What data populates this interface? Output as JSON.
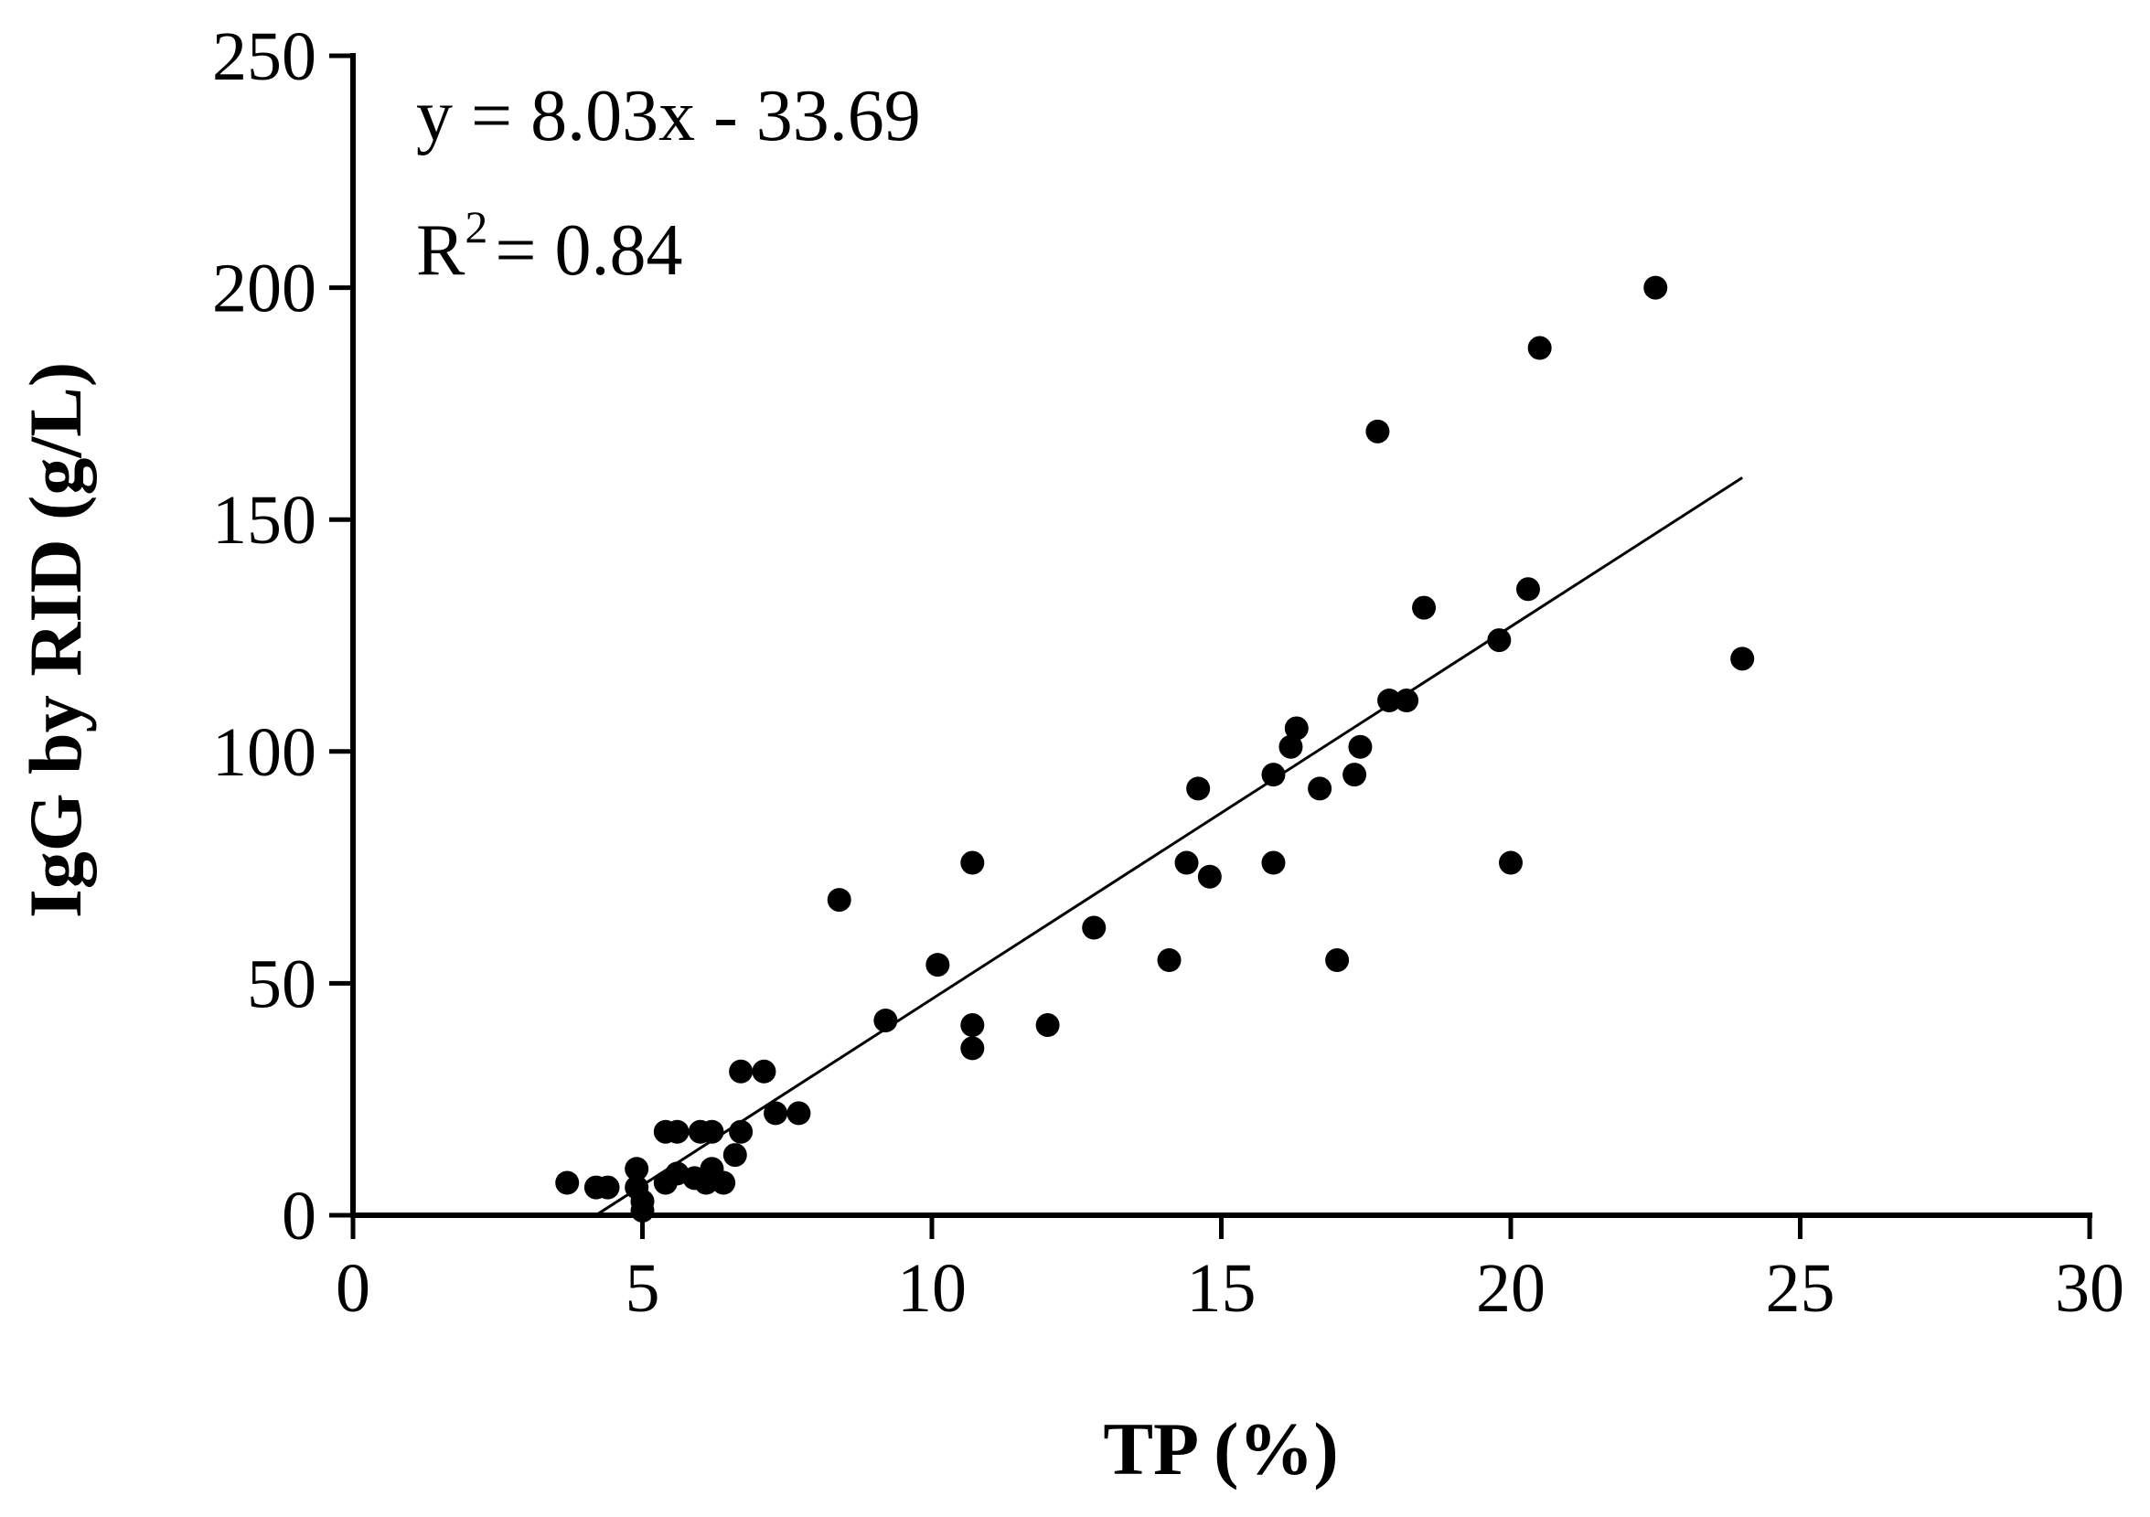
{
  "chart_data": {
    "type": "scatter",
    "title": "",
    "xlabel": "TP (%)",
    "ylabel": "IgG by RID (g/L)",
    "xlim": [
      0,
      30
    ],
    "ylim": [
      0,
      250
    ],
    "xticks": [
      0,
      5,
      10,
      15,
      20,
      25,
      30
    ],
    "yticks": [
      0,
      50,
      100,
      150,
      200,
      250
    ],
    "xtick_labels": [
      "0",
      "5",
      "10",
      "15",
      "20",
      "25",
      "30"
    ],
    "ytick_labels": [
      "0",
      "50",
      "100",
      "150",
      "200",
      "250"
    ],
    "grid": false,
    "legend": "none",
    "colors": {
      "points": "#000000",
      "line": "#000000",
      "axis": "#000000"
    },
    "annotations": {
      "equation": "y = 8.03x - 33.69",
      "r2_prefix": "R",
      "r2_sup": "2",
      "r2_value": "= 0.84"
    },
    "fit_line": {
      "slope": 8.03,
      "intercept": -33.69,
      "x_range": [
        4.2,
        24.0
      ]
    },
    "series": [
      {
        "points": [
          {
            "x": 3.7,
            "y": 7
          },
          {
            "x": 4.2,
            "y": 6
          },
          {
            "x": 4.4,
            "y": 6
          },
          {
            "x": 4.9,
            "y": 10
          },
          {
            "x": 4.9,
            "y": 6
          },
          {
            "x": 5.0,
            "y": 3
          },
          {
            "x": 5.0,
            "y": 1
          },
          {
            "x": 5.4,
            "y": 18
          },
          {
            "x": 5.6,
            "y": 18
          },
          {
            "x": 5.4,
            "y": 7
          },
          {
            "x": 5.6,
            "y": 9
          },
          {
            "x": 5.9,
            "y": 8
          },
          {
            "x": 6.0,
            "y": 18
          },
          {
            "x": 6.2,
            "y": 18
          },
          {
            "x": 6.1,
            "y": 7
          },
          {
            "x": 6.2,
            "y": 10
          },
          {
            "x": 6.4,
            "y": 7
          },
          {
            "x": 6.6,
            "y": 13
          },
          {
            "x": 6.7,
            "y": 18
          },
          {
            "x": 6.7,
            "y": 31
          },
          {
            "x": 7.1,
            "y": 31
          },
          {
            "x": 7.3,
            "y": 22
          },
          {
            "x": 7.7,
            "y": 22
          },
          {
            "x": 8.4,
            "y": 68
          },
          {
            "x": 9.2,
            "y": 42
          },
          {
            "x": 10.1,
            "y": 54
          },
          {
            "x": 10.7,
            "y": 76
          },
          {
            "x": 10.7,
            "y": 41
          },
          {
            "x": 10.7,
            "y": 36
          },
          {
            "x": 12.0,
            "y": 41
          },
          {
            "x": 12.8,
            "y": 62
          },
          {
            "x": 14.1,
            "y": 55
          },
          {
            "x": 14.4,
            "y": 76
          },
          {
            "x": 14.6,
            "y": 92
          },
          {
            "x": 14.8,
            "y": 73
          },
          {
            "x": 15.9,
            "y": 76
          },
          {
            "x": 15.9,
            "y": 95
          },
          {
            "x": 16.2,
            "y": 101
          },
          {
            "x": 16.3,
            "y": 105
          },
          {
            "x": 16.7,
            "y": 92
          },
          {
            "x": 17.0,
            "y": 55
          },
          {
            "x": 17.3,
            "y": 95
          },
          {
            "x": 17.4,
            "y": 101
          },
          {
            "x": 17.7,
            "y": 169
          },
          {
            "x": 17.9,
            "y": 111
          },
          {
            "x": 18.2,
            "y": 111
          },
          {
            "x": 18.5,
            "y": 131
          },
          {
            "x": 19.8,
            "y": 124
          },
          {
            "x": 20.0,
            "y": 76
          },
          {
            "x": 20.3,
            "y": 135
          },
          {
            "x": 20.5,
            "y": 187
          },
          {
            "x": 22.5,
            "y": 200
          },
          {
            "x": 24.0,
            "y": 120
          }
        ]
      }
    ]
  }
}
